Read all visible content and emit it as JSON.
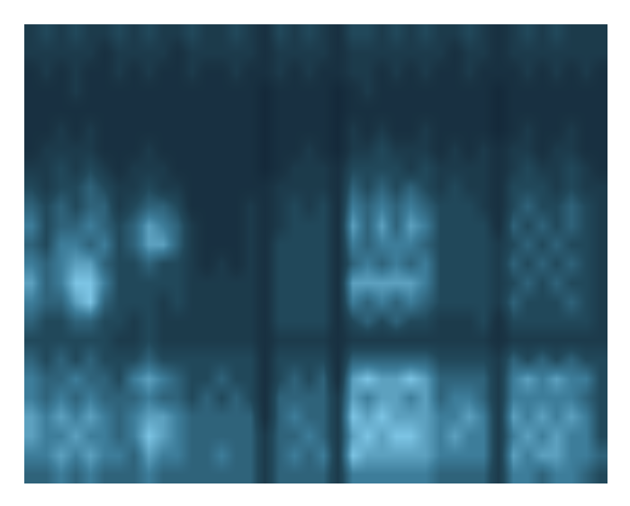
{
  "chart_data": {
    "type": "heatmap",
    "tick_labels": false,
    "zlim": [
      0,
      10
    ],
    "cells": [
      [
        2,
        3,
        2,
        3,
        2,
        2,
        3,
        2,
        3,
        2,
        2,
        3,
        2,
        2,
        3,
        2,
        1,
        3,
        2,
        3,
        2,
        1,
        3,
        3,
        2,
        3,
        2,
        3,
        2,
        2,
        3,
        2,
        1,
        2,
        3,
        2,
        3,
        2,
        2,
        2
      ],
      [
        2,
        2,
        2,
        2,
        2,
        1,
        2,
        2,
        2,
        2,
        1,
        2,
        2,
        2,
        2,
        2,
        1,
        2,
        2,
        2,
        2,
        1,
        2,
        2,
        2,
        2,
        2,
        2,
        2,
        1,
        2,
        2,
        1,
        2,
        2,
        2,
        2,
        2,
        2,
        2
      ],
      [
        1,
        2,
        1,
        2,
        1,
        1,
        2,
        1,
        2,
        1,
        1,
        2,
        1,
        1,
        2,
        1,
        1,
        2,
        1,
        2,
        1,
        1,
        2,
        2,
        1,
        2,
        1,
        2,
        1,
        1,
        2,
        1,
        1,
        1,
        2,
        1,
        2,
        1,
        2,
        1
      ],
      [
        1,
        1,
        1,
        2,
        1,
        1,
        1,
        1,
        1,
        1,
        1,
        1,
        1,
        1,
        1,
        1,
        0,
        1,
        1,
        1,
        1,
        0,
        1,
        2,
        1,
        1,
        1,
        1,
        1,
        1,
        1,
        1,
        0,
        1,
        1,
        1,
        1,
        1,
        1,
        1
      ],
      [
        1,
        1,
        1,
        1,
        1,
        1,
        1,
        1,
        1,
        1,
        1,
        1,
        1,
        1,
        1,
        1,
        0,
        1,
        1,
        1,
        1,
        0,
        1,
        1,
        1,
        1,
        1,
        1,
        1,
        1,
        1,
        1,
        0,
        1,
        1,
        1,
        1,
        1,
        1,
        1
      ],
      [
        1,
        1,
        2,
        1,
        2,
        1,
        1,
        1,
        1,
        1,
        1,
        1,
        1,
        1,
        1,
        1,
        0,
        1,
        1,
        1,
        1,
        0,
        2,
        1,
        2,
        1,
        1,
        2,
        1,
        1,
        1,
        1,
        0,
        1,
        2,
        1,
        1,
        2,
        1,
        1
      ],
      [
        1,
        2,
        2,
        2,
        2,
        1,
        1,
        1,
        2,
        1,
        1,
        1,
        1,
        1,
        1,
        1,
        0,
        1,
        1,
        2,
        1,
        0,
        2,
        2,
        3,
        2,
        2,
        2,
        1,
        2,
        1,
        2,
        1,
        2,
        2,
        1,
        2,
        2,
        1,
        1
      ],
      [
        2,
        2,
        3,
        2,
        3,
        2,
        1,
        2,
        2,
        2,
        1,
        1,
        1,
        1,
        1,
        1,
        0,
        1,
        2,
        2,
        2,
        1,
        3,
        3,
        3,
        3,
        2,
        3,
        2,
        2,
        2,
        2,
        1,
        2,
        3,
        2,
        2,
        3,
        2,
        1
      ],
      [
        3,
        2,
        3,
        3,
        4,
        3,
        2,
        2,
        3,
        2,
        2,
        1,
        1,
        1,
        1,
        1,
        1,
        2,
        2,
        2,
        2,
        1,
        4,
        3,
        4,
        3,
        4,
        3,
        2,
        3,
        2,
        2,
        1,
        3,
        3,
        3,
        2,
        3,
        2,
        2
      ],
      [
        4,
        3,
        4,
        3,
        4,
        4,
        2,
        3,
        4,
        4,
        3,
        1,
        1,
        1,
        1,
        2,
        1,
        2,
        3,
        2,
        3,
        1,
        5,
        4,
        5,
        4,
        5,
        4,
        3,
        3,
        3,
        2,
        1,
        3,
        4,
        3,
        3,
        4,
        3,
        2
      ],
      [
        5,
        3,
        4,
        4,
        5,
        4,
        3,
        4,
        6,
        5,
        4,
        2,
        1,
        1,
        1,
        2,
        1,
        2,
        3,
        3,
        3,
        1,
        6,
        4,
        6,
        4,
        6,
        5,
        3,
        3,
        3,
        3,
        1,
        4,
        3,
        4,
        3,
        4,
        3,
        2
      ],
      [
        4,
        3,
        5,
        5,
        4,
        5,
        3,
        4,
        6,
        6,
        4,
        2,
        1,
        1,
        1,
        2,
        1,
        3,
        3,
        3,
        3,
        1,
        5,
        4,
        5,
        5,
        5,
        4,
        3,
        3,
        3,
        3,
        2,
        3,
        4,
        3,
        4,
        3,
        3,
        2
      ],
      [
        5,
        4,
        5,
        6,
        6,
        4,
        3,
        3,
        4,
        3,
        3,
        2,
        1,
        2,
        1,
        2,
        1,
        3,
        3,
        3,
        3,
        1,
        4,
        5,
        4,
        5,
        4,
        5,
        3,
        3,
        3,
        3,
        2,
        4,
        3,
        4,
        3,
        4,
        3,
        2
      ],
      [
        6,
        4,
        5,
        7,
        7,
        5,
        3,
        3,
        3,
        3,
        3,
        2,
        2,
        2,
        2,
        2,
        1,
        3,
        3,
        3,
        3,
        1,
        6,
        6,
        6,
        6,
        6,
        5,
        3,
        3,
        3,
        3,
        2,
        3,
        4,
        3,
        4,
        3,
        3,
        2
      ],
      [
        5,
        4,
        4,
        6,
        7,
        4,
        3,
        3,
        3,
        2,
        3,
        2,
        2,
        2,
        2,
        2,
        1,
        3,
        3,
        3,
        3,
        1,
        5,
        4,
        5,
        4,
        5,
        4,
        3,
        3,
        3,
        3,
        2,
        4,
        3,
        3,
        3,
        4,
        3,
        2
      ],
      [
        4,
        3,
        3,
        4,
        4,
        3,
        3,
        2,
        3,
        2,
        2,
        2,
        2,
        2,
        2,
        2,
        1,
        3,
        3,
        3,
        3,
        1,
        3,
        4,
        3,
        4,
        3,
        3,
        2,
        2,
        2,
        3,
        1,
        3,
        3,
        3,
        3,
        3,
        3,
        2
      ],
      [
        3,
        3,
        3,
        3,
        3,
        3,
        2,
        2,
        3,
        2,
        2,
        2,
        2,
        2,
        2,
        2,
        1,
        2,
        2,
        2,
        2,
        1,
        2,
        2,
        2,
        2,
        2,
        2,
        2,
        2,
        2,
        2,
        1,
        2,
        2,
        2,
        2,
        2,
        2,
        2
      ],
      [
        4,
        3,
        4,
        3,
        4,
        3,
        3,
        3,
        4,
        3,
        3,
        3,
        3,
        3,
        3,
        3,
        1,
        3,
        3,
        3,
        3,
        1,
        4,
        4,
        4,
        4,
        4,
        4,
        3,
        3,
        3,
        3,
        2,
        4,
        3,
        4,
        3,
        4,
        3,
        3
      ],
      [
        5,
        4,
        4,
        5,
        4,
        4,
        3,
        5,
        6,
        5,
        4,
        3,
        3,
        4,
        3,
        3,
        1,
        3,
        4,
        3,
        4,
        1,
        6,
        7,
        6,
        6,
        7,
        6,
        4,
        4,
        4,
        4,
        2,
        5,
        6,
        5,
        6,
        5,
        5,
        3
      ],
      [
        5,
        4,
        5,
        4,
        5,
        4,
        4,
        4,
        5,
        4,
        4,
        3,
        4,
        3,
        4,
        3,
        1,
        4,
        4,
        4,
        4,
        2,
        6,
        5,
        6,
        6,
        5,
        6,
        4,
        5,
        5,
        4,
        2,
        5,
        5,
        5,
        5,
        5,
        4,
        3
      ],
      [
        6,
        5,
        6,
        5,
        6,
        5,
        4,
        5,
        6,
        6,
        5,
        4,
        4,
        4,
        4,
        4,
        1,
        4,
        5,
        4,
        4,
        2,
        7,
        6,
        7,
        6,
        6,
        6,
        5,
        5,
        6,
        5,
        2,
        6,
        5,
        6,
        5,
        6,
        5,
        3
      ],
      [
        6,
        5,
        5,
        6,
        5,
        5,
        4,
        5,
        7,
        6,
        5,
        4,
        4,
        4,
        4,
        4,
        2,
        4,
        4,
        5,
        4,
        2,
        6,
        7,
        6,
        7,
        7,
        6,
        5,
        6,
        5,
        5,
        2,
        5,
        6,
        5,
        6,
        5,
        5,
        3
      ],
      [
        5,
        5,
        6,
        5,
        6,
        5,
        5,
        4,
        6,
        5,
        5,
        4,
        4,
        5,
        4,
        4,
        2,
        4,
        5,
        4,
        5,
        2,
        7,
        6,
        6,
        6,
        6,
        6,
        5,
        5,
        5,
        5,
        2,
        6,
        5,
        6,
        6,
        5,
        5,
        4
      ],
      [
        4,
        4,
        5,
        4,
        5,
        4,
        4,
        4,
        5,
        4,
        4,
        4,
        4,
        4,
        4,
        4,
        2,
        4,
        4,
        4,
        4,
        2,
        5,
        5,
        5,
        5,
        5,
        5,
        4,
        4,
        4,
        4,
        2,
        5,
        5,
        4,
        5,
        5,
        4,
        3
      ]
    ]
  }
}
